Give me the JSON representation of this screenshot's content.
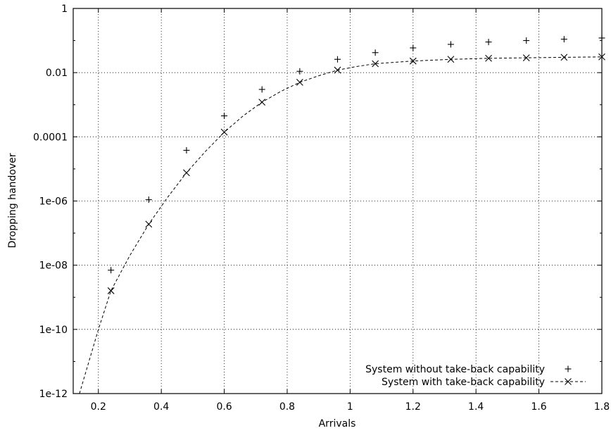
{
  "chart_data": {
    "type": "scatter",
    "title": "",
    "xlabel": "Arrivals",
    "ylabel": "Dropping handover",
    "xlim": [
      0.12,
      1.8
    ],
    "ylim": [
      1e-12,
      1
    ],
    "yscale": "log",
    "grid": true,
    "legend_position": "bottom-right",
    "x_ticks": [
      "0.2",
      "0.4",
      "0.6",
      "0.8",
      "1",
      "1.2",
      "1.4",
      "1.6",
      "1.8"
    ],
    "x_tick_values": [
      0.2,
      0.4,
      0.6,
      0.8,
      1,
      1.2,
      1.4,
      1.6,
      1.8
    ],
    "y_ticks": [
      "1e-12",
      "1e-10",
      "1e-08",
      "1e-06",
      "0.0001",
      "0.01",
      "1"
    ],
    "y_tick_values": [
      1e-12,
      1e-10,
      1e-08,
      1e-06,
      0.0001,
      0.01,
      1
    ],
    "series": [
      {
        "name": "System without take-back capability",
        "marker": "plus",
        "line": false,
        "x": [
          0.24,
          0.36,
          0.48,
          0.6,
          0.72,
          0.84,
          0.96,
          1.08,
          1.2,
          1.32,
          1.44,
          1.56,
          1.68,
          1.8
        ],
        "y": [
          7e-09,
          1.1e-06,
          3.8e-05,
          0.00045,
          0.003,
          0.011,
          0.026,
          0.042,
          0.059,
          0.076,
          0.09,
          0.1,
          0.11,
          0.12
        ]
      },
      {
        "name": "System with take-back capability",
        "marker": "x",
        "line": true,
        "x": [
          0.24,
          0.36,
          0.48,
          0.6,
          0.72,
          0.84,
          0.96,
          1.08,
          1.2,
          1.32,
          1.44,
          1.56,
          1.68,
          1.8
        ],
        "y": [
          1.6e-09,
          1.9e-07,
          7.6e-06,
          0.00014,
          0.0012,
          0.005,
          0.012,
          0.019,
          0.023,
          0.026,
          0.028,
          0.029,
          0.03,
          0.031
        ],
        "curve_x": [
          0.14,
          0.2,
          0.24,
          0.3,
          0.36,
          0.42,
          0.48,
          0.54,
          0.6,
          0.66,
          0.72,
          0.78,
          0.84,
          0.9,
          0.96,
          1.02,
          1.08,
          1.14,
          1.2,
          1.32,
          1.44,
          1.56,
          1.68,
          1.8
        ],
        "curve_y": [
          1e-12,
          1e-10,
          1.6e-09,
          2e-08,
          1.9e-07,
          1.3e-06,
          7.6e-06,
          3.5e-05,
          0.00014,
          0.00045,
          0.0012,
          0.0026,
          0.005,
          0.008,
          0.012,
          0.0155,
          0.019,
          0.021,
          0.023,
          0.026,
          0.028,
          0.029,
          0.03,
          0.031
        ]
      }
    ]
  }
}
